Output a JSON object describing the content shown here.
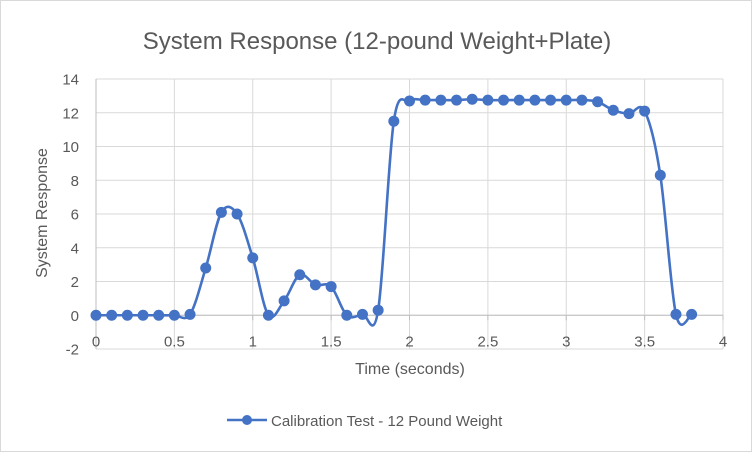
{
  "chart_data": {
    "type": "line",
    "title": "System Response  (12-pound Weight+Plate)",
    "xlabel": "Time (seconds)",
    "ylabel": "System Response",
    "xlim": [
      0,
      4
    ],
    "ylim": [
      -2,
      14
    ],
    "x_ticks": [
      0,
      0.5,
      1,
      1.5,
      2,
      2.5,
      3,
      3.5,
      4
    ],
    "x_tick_labels": [
      "0",
      "0.5",
      "1",
      "1.5",
      "2",
      "2.5",
      "3",
      "3.5",
      "4"
    ],
    "y_ticks": [
      -2,
      0,
      2,
      4,
      6,
      8,
      10,
      12,
      14
    ],
    "y_tick_labels": [
      "-2",
      "0",
      "2",
      "4",
      "6",
      "8",
      "10",
      "12",
      "14"
    ],
    "grid": true,
    "smoothed": true,
    "legend_position": "bottom",
    "series": [
      {
        "name": "Calibration Test - 12 Pound Weight",
        "color": "#4472c4",
        "marker": "circle",
        "x": [
          0,
          0.1,
          0.2,
          0.3,
          0.4,
          0.5,
          0.6,
          0.7,
          0.8,
          0.9,
          1.0,
          1.1,
          1.2,
          1.3,
          1.4,
          1.5,
          1.6,
          1.7,
          1.8,
          1.9,
          2.0,
          2.1,
          2.2,
          2.3,
          2.4,
          2.5,
          2.6,
          2.7,
          2.8,
          2.9,
          3.0,
          3.1,
          3.2,
          3.3,
          3.4,
          3.5,
          3.6,
          3.7,
          3.8
        ],
        "y": [
          0,
          0,
          0,
          0,
          0,
          0,
          0.05,
          2.8,
          6.1,
          6.0,
          3.4,
          0,
          0.85,
          2.4,
          1.8,
          1.7,
          0,
          0.05,
          0.3,
          11.5,
          12.7,
          12.75,
          12.75,
          12.75,
          12.8,
          12.75,
          12.75,
          12.75,
          12.75,
          12.75,
          12.75,
          12.75,
          12.65,
          12.15,
          11.95,
          12.1,
          8.3,
          0.05,
          0.05
        ]
      }
    ]
  }
}
